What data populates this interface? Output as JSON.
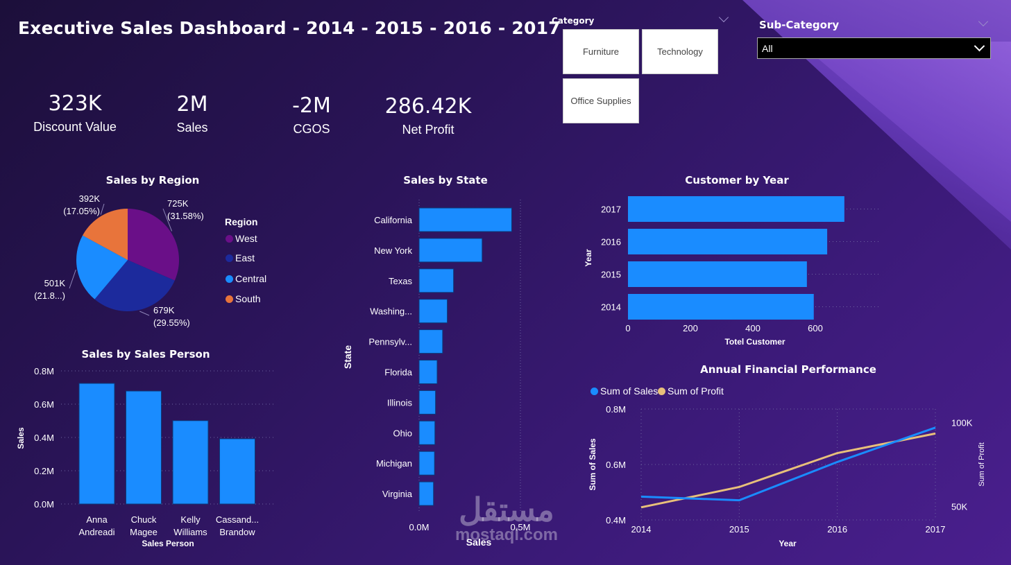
{
  "title": "Executive Sales Dashboard - 2014 - 2015 - 2016 - 2017",
  "kpis": [
    {
      "value": "323K",
      "label": "Discount Value"
    },
    {
      "value": "2M",
      "label": "Sales"
    },
    {
      "value": "-2M",
      "label": "CGOS"
    },
    {
      "value": "286.42K",
      "label": "Net Profit"
    }
  ],
  "slicers": {
    "category": {
      "label": "Category",
      "options": [
        "Furniture",
        "Technology",
        "Office Supplies"
      ]
    },
    "subcategory": {
      "label": "Sub-Category",
      "selected": "All"
    }
  },
  "colors": {
    "bar": "#1a8cff",
    "west": "#6a0f88",
    "east": "#1c2a9c",
    "central": "#1a8cff",
    "south": "#e8743b",
    "profit_line": "#e8c07a"
  },
  "watermark": {
    "arabic": "مستقل",
    "latin": "mostaql.com"
  },
  "chart_data": [
    {
      "id": "region",
      "type": "pie",
      "title": "Sales by Region",
      "legend_title": "Region",
      "legend_position": "right",
      "slices": [
        {
          "name": "West",
          "value": 725,
          "label": "725K",
          "pct": "(31.58%)"
        },
        {
          "name": "East",
          "value": 679,
          "label": "679K",
          "pct": "(29.55%)"
        },
        {
          "name": "Central",
          "value": 501,
          "label": "501K",
          "pct": "(21.8...)"
        },
        {
          "name": "South",
          "value": 392,
          "label": "392K",
          "pct": "(17.05%)"
        }
      ]
    },
    {
      "id": "state",
      "type": "bar",
      "orientation": "horizontal",
      "title": "Sales by State",
      "xlabel": "Sales",
      "ylabel": "State",
      "categories": [
        "California",
        "New York",
        "Texas",
        "Washing...",
        "Pennsylv...",
        "Florida",
        "Illinois",
        "Ohio",
        "Michigan",
        "Virginia"
      ],
      "values": [
        0.457,
        0.311,
        0.17,
        0.139,
        0.116,
        0.089,
        0.081,
        0.078,
        0.076,
        0.071
      ],
      "xticks": [
        "0.0M",
        "0.5M"
      ],
      "xlim": [
        0,
        0.5
      ]
    },
    {
      "id": "customer",
      "type": "bar",
      "orientation": "horizontal",
      "title": "Customer by Year",
      "xlabel": "Totel Customer",
      "ylabel": "Year",
      "categories": [
        "2017",
        "2016",
        "2015",
        "2014"
      ],
      "values": [
        693,
        638,
        573,
        595
      ],
      "xticks": [
        "0",
        "200",
        "400",
        "600"
      ],
      "xlim": [
        0,
        700
      ]
    },
    {
      "id": "salesperson",
      "type": "bar",
      "title": "Sales by Sales Person",
      "xlabel": "Sales Person",
      "ylabel": "Sales",
      "categories": [
        [
          "Anna",
          "Andreadi"
        ],
        [
          "Chuck",
          "Magee"
        ],
        [
          "Kelly",
          "Williams"
        ],
        [
          "Cassand...",
          "Brandow"
        ]
      ],
      "values": [
        0.725,
        0.679,
        0.501,
        0.392
      ],
      "yticks": [
        "0.0M",
        "0.2M",
        "0.4M",
        "0.6M",
        "0.8M"
      ],
      "ylim": [
        0,
        0.8
      ]
    },
    {
      "id": "annual",
      "type": "line",
      "title": "Annual Financial Performance",
      "x": [
        "2014",
        "2015",
        "2016",
        "2017"
      ],
      "xlabel": "Year",
      "ylabel": "Sum of Sales",
      "y2label": "Sum of Profit",
      "legend_position": "top-left",
      "series": [
        {
          "name": "Sum of Sales",
          "axis": "left",
          "values": [
            0.484,
            0.471,
            0.609,
            0.733
          ]
        },
        {
          "name": "Sum of Profit",
          "axis": "right",
          "values": [
            49500,
            61600,
            81800,
            93400
          ]
        }
      ],
      "yticks": [
        "0.4M",
        "0.6M",
        "0.8M"
      ],
      "ylim": [
        0.4,
        0.8
      ],
      "y2ticks": [
        "50K",
        "100K"
      ],
      "y2lim": [
        42000,
        108000
      ]
    }
  ]
}
